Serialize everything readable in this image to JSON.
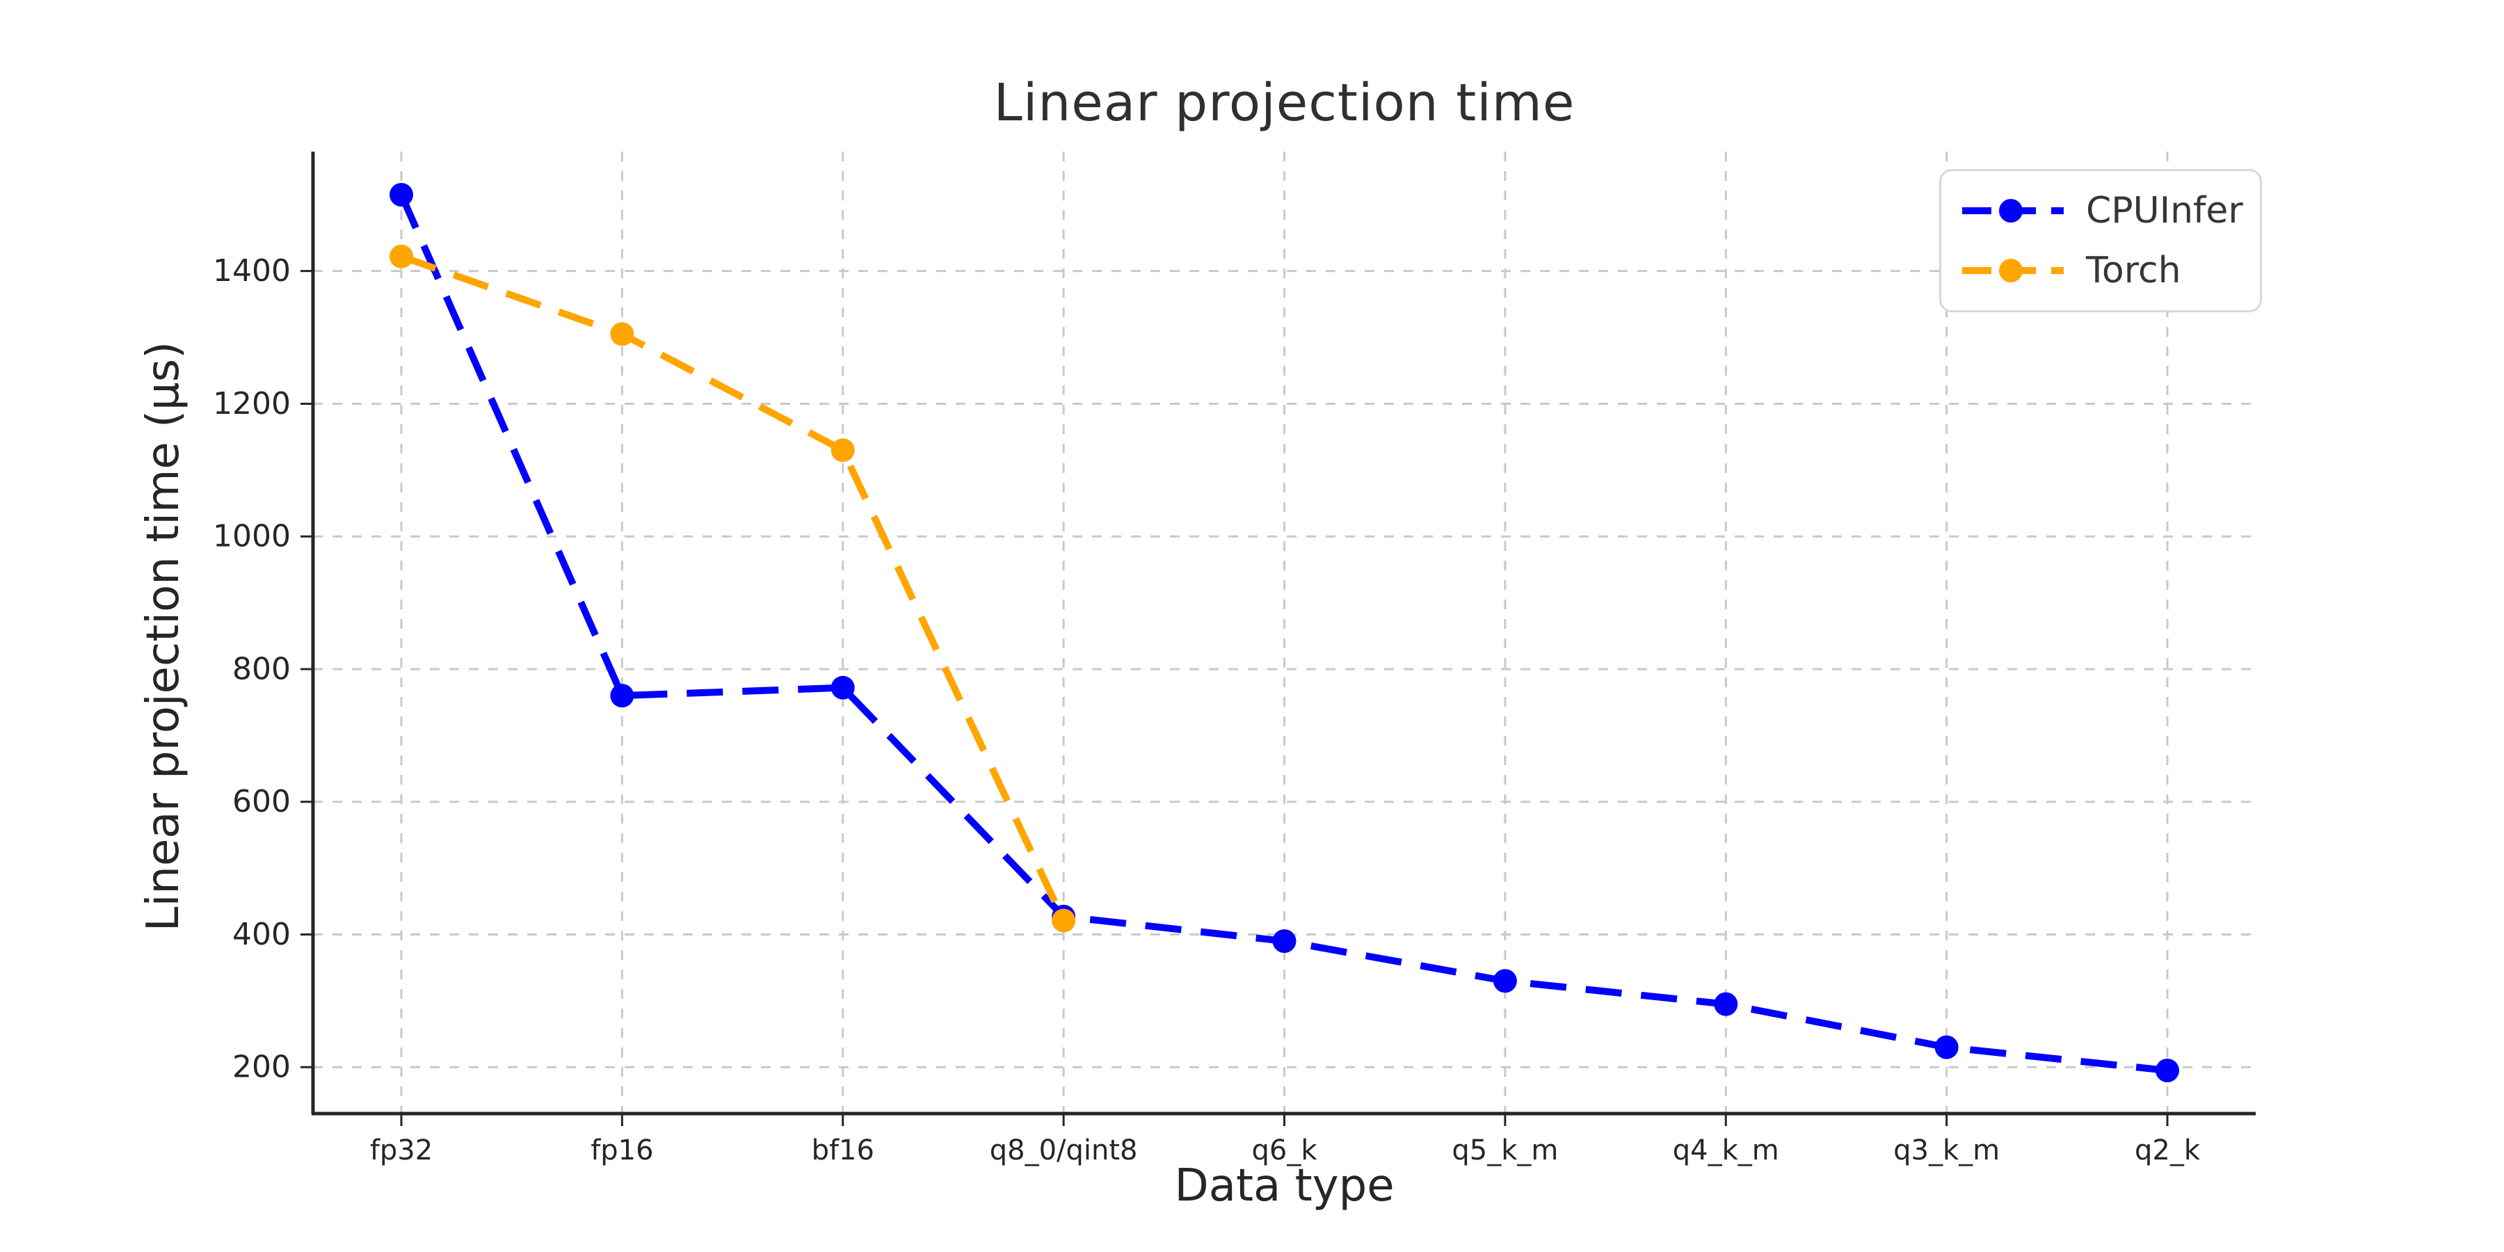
{
  "chart_data": {
    "type": "line",
    "title": "Linear projection time",
    "xlabel": "Data type",
    "ylabel": "Linear projection time (µs)",
    "categories": [
      "fp32",
      "fp16",
      "bf16",
      "q8_0/qint8",
      "q6_k",
      "q5_k_m",
      "q4_k_m",
      "q3_k_m",
      "q2_k"
    ],
    "series": [
      {
        "name": "CPUInfer",
        "color": "#0000ff",
        "values": [
          1515,
          760,
          772,
          427,
          390,
          330,
          295,
          230,
          195
        ]
      },
      {
        "name": "Torch",
        "color": "#ffa500",
        "values": [
          1422,
          1305,
          1130,
          421
        ]
      }
    ],
    "yticks": [
      200,
      400,
      600,
      800,
      1000,
      1200,
      1400
    ],
    "ylim": [
      130,
      1580
    ],
    "grid": true,
    "grid_style": "dashed",
    "line_style": "dashed",
    "marker": "circle",
    "legend_position": "upper right",
    "colors": {
      "grid": "#c9c9c9",
      "spine": "#262626",
      "tick_label": "#262626",
      "title_text": "#2d3133",
      "background": "#ffffff"
    }
  }
}
